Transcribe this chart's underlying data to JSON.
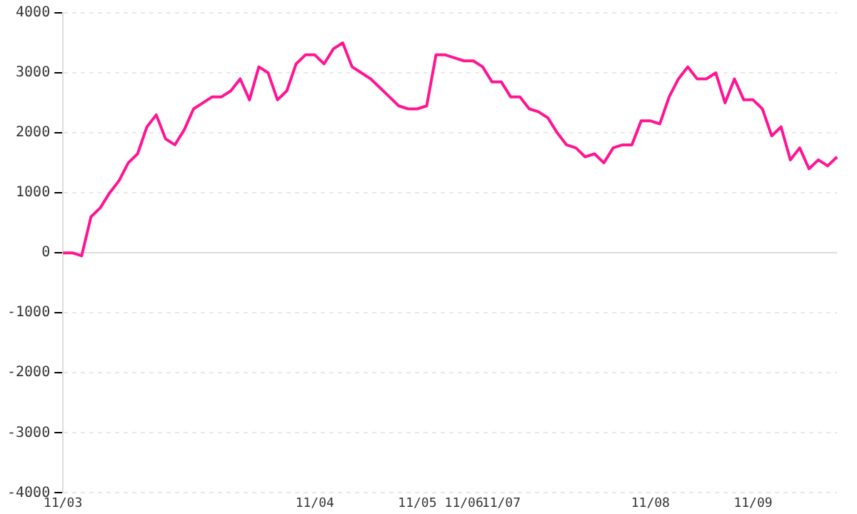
{
  "chart_data": {
    "type": "line",
    "categories": [
      "11/03",
      null,
      null,
      null,
      null,
      null,
      null,
      null,
      null,
      null,
      null,
      null,
      null,
      null,
      null,
      null,
      null,
      null,
      null,
      null,
      null,
      null,
      null,
      null,
      null,
      null,
      null,
      "11/04",
      null,
      null,
      null,
      null,
      null,
      null,
      null,
      null,
      null,
      null,
      "11/05",
      null,
      null,
      null,
      null,
      "11/06",
      null,
      null,
      null,
      "11/07",
      null,
      null,
      null,
      null,
      null,
      null,
      null,
      null,
      null,
      null,
      null,
      null,
      null,
      null,
      null,
      "11/08",
      null,
      null,
      null,
      null,
      null,
      null,
      null,
      null,
      null,
      null,
      "11/09",
      null,
      null,
      null,
      null,
      null,
      null,
      null,
      null,
      null
    ],
    "series": [
      {
        "color": "#ff1493",
        "values": [
          0,
          0,
          -50,
          600,
          750,
          1000,
          1200,
          1500,
          1650,
          2100,
          2300,
          1900,
          1800,
          2050,
          2400,
          2500,
          2600,
          2600,
          2700,
          2900,
          2550,
          3100,
          3000,
          2550,
          2700,
          3150,
          3300,
          3300,
          3150,
          3400,
          3500,
          3100,
          3000,
          2900,
          2750,
          2600,
          2450,
          2400,
          2400,
          2450,
          3300,
          3300,
          3250,
          3200,
          3200,
          3100,
          2850,
          2850,
          2600,
          2600,
          2400,
          2350,
          2250,
          2000,
          1800,
          1750,
          1600,
          1650,
          1500,
          1750,
          1800,
          1800,
          2200,
          2200,
          2150,
          2600,
          2900,
          3100,
          2900,
          2900,
          3000,
          2500,
          2900,
          2550,
          2550,
          2400,
          1950,
          2100,
          1550,
          1750,
          1400,
          1550,
          1450,
          1600
        ]
      }
    ],
    "ylim": [
      -4000,
      4000
    ],
    "yticks": [
      -4000,
      -3000,
      -2000,
      -1000,
      0,
      1000,
      2000,
      3000,
      4000
    ],
    "grid": "y",
    "legend": false,
    "marker": "none",
    "line_style": "solid"
  }
}
